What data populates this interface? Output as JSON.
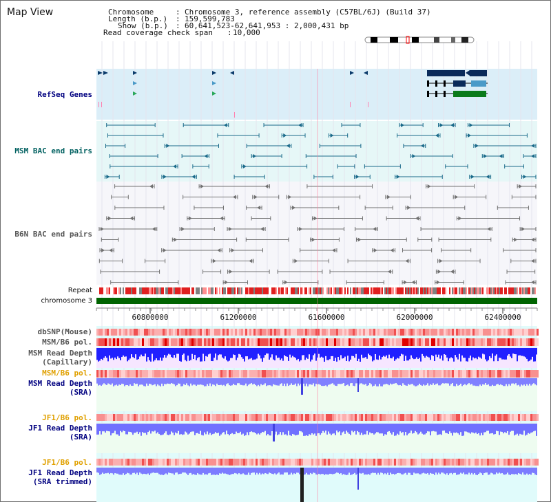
{
  "page": {
    "title": "Map View"
  },
  "header": {
    "chromosome_key": "Chromosome",
    "chromosome_value": "Chromosome 3, reference assembly (C57BL/6J) (Build 37)",
    "length_key": "Length (b.p.)",
    "length_value": "159,599,783",
    "show_key": "Show (b.p.)",
    "show_value": "60,641,523-62,641,953 : 2,000,431 bp",
    "span_key": "Read coverage check span",
    "span_value": "10,000",
    "sep": ":"
  },
  "tracks": {
    "refseq": "RefSeq Genes",
    "msm_bac": "MSM BAC end pairs",
    "b6n_bac": "B6N BAC end pairs",
    "repeat": "Repeat",
    "chromosome": "chromosome 3",
    "dbsnp": "dbSNP(Mouse)",
    "msm_b6_pol_1": "MSM/B6 pol.",
    "msm_depth_cap_1": "MSM Read Depth",
    "msm_depth_cap_2": "(Capillary)",
    "msm_b6_pol_2": "MSM/B6 pol.",
    "msm_depth_sra_1": "MSM Read Depth",
    "msm_depth_sra_2": "(SRA)",
    "jf1_b6_pol_1": "JF1/B6 pol.",
    "jf1_depth_sra_1": "JF1 Read Depth",
    "jf1_depth_sra_2": "(SRA)",
    "jf1_b6_pol_2": "JF1/B6 pol.",
    "jf1_depth_trim_1": "JF1 Read Depth",
    "jf1_depth_trim_2": "(SRA trimmed)"
  },
  "axis": {
    "ticks": [
      "60800000",
      "61200000",
      "61600000",
      "62000000",
      "62400000"
    ]
  },
  "colors": {
    "refseq_bg": "#dbeef8",
    "msm_bac_bg": "#e6f7f7",
    "b6n_bac_bg": "#f6f6fa",
    "lower_bg": "#e0fbfb",
    "label_blue": "#000080",
    "label_teal": "#006060",
    "label_gray": "#555555",
    "label_orange": "#e0a000",
    "chromosome_green": "#006400",
    "depth_blue": "#2020ff",
    "depth_light": "#7c7cff"
  }
}
